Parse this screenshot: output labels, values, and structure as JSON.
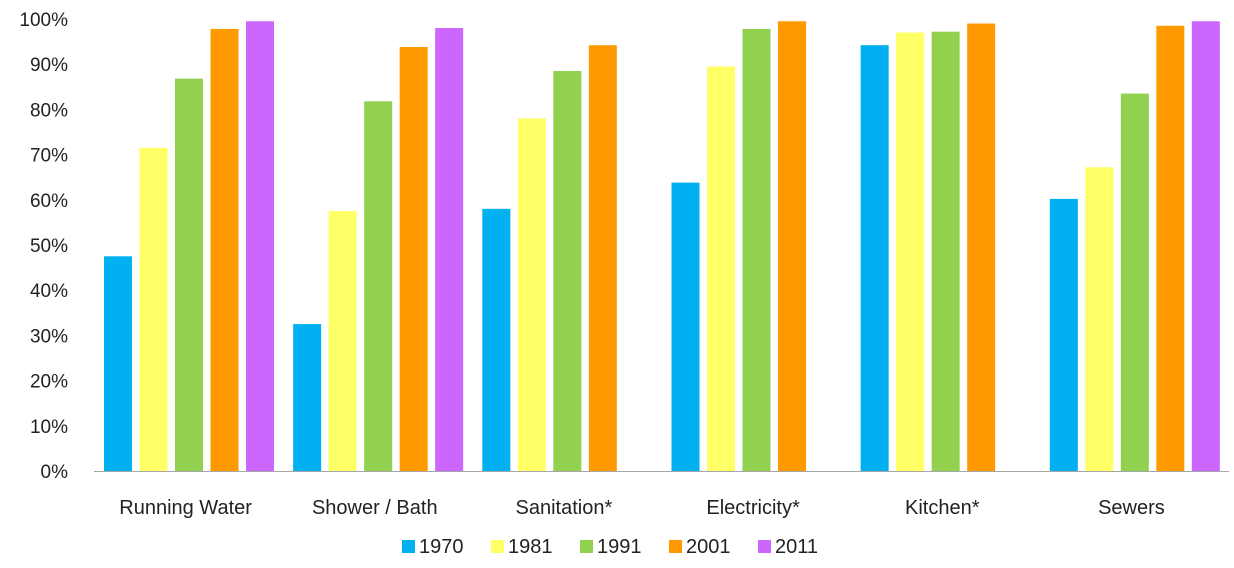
{
  "chart_data": {
    "type": "bar",
    "categories": [
      "Running Water",
      "Shower / Bath",
      "Sanitation*",
      "Electricity*",
      "Kitchen*",
      "Sewers"
    ],
    "y_tick_labels": [
      "0%",
      "10%",
      "20%",
      "30%",
      "40%",
      "50%",
      "60%",
      "70%",
      "80%",
      "90%",
      "100%"
    ],
    "ylim": [
      0,
      100
    ],
    "ylabel": "",
    "xlabel": "",
    "title": "",
    "grid": false,
    "legend_position": "bottom",
    "series": [
      {
        "name": "1970",
        "color": "#00b0f0",
        "values": [
          47.5,
          32.5,
          58.0,
          63.8,
          94.2,
          60.2
        ]
      },
      {
        "name": "1981",
        "color": "#ffff66",
        "values": [
          71.5,
          57.5,
          78.0,
          89.5,
          97.0,
          67.2
        ]
      },
      {
        "name": "1991",
        "color": "#92d050",
        "values": [
          86.8,
          81.8,
          88.5,
          97.8,
          97.2,
          83.5
        ]
      },
      {
        "name": "2001",
        "color": "#ff9900",
        "values": [
          97.8,
          93.8,
          94.2,
          99.5,
          99.0,
          98.5
        ]
      },
      {
        "name": "2011",
        "color": "#cc66ff",
        "values": [
          99.5,
          98.0,
          null,
          null,
          null,
          99.5
        ]
      }
    ]
  }
}
